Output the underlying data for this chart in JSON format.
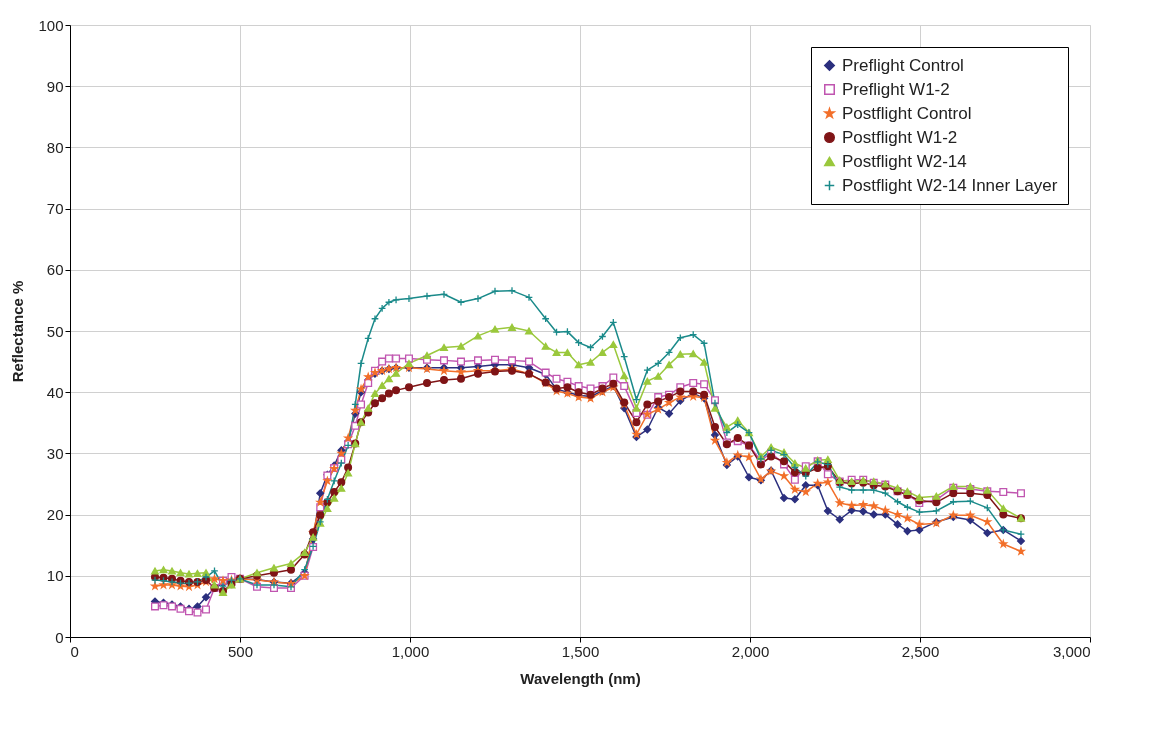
{
  "chart_data": {
    "type": "line",
    "xlabel": "Wavelength (nm)",
    "ylabel": "Reflectance %",
    "xlim": [
      0,
      3000
    ],
    "xticks": [
      0,
      {
        "value": 500,
        "label": "500"
      },
      {
        "value": 1000,
        "label": "1,000"
      },
      {
        "value": 1500,
        "label": "1,500"
      },
      {
        "value": 2000,
        "label": "2,000"
      },
      {
        "value": 2500,
        "label": "2,500"
      },
      {
        "value": 3000,
        "label": "3,000"
      }
    ],
    "ylim": [
      0,
      100
    ],
    "yticks": [
      0,
      10,
      20,
      30,
      40,
      50,
      60,
      70,
      80,
      90,
      100
    ],
    "grid": true,
    "legend": "top right",
    "line_style": "solid",
    "x": [
      250,
      275,
      300,
      325,
      350,
      375,
      400,
      425,
      450,
      475,
      500,
      550,
      600,
      650,
      690,
      715,
      736,
      757,
      777,
      798,
      818,
      839,
      856,
      877,
      897,
      918,
      938,
      959,
      997,
      1050,
      1100,
      1150,
      1200,
      1250,
      1300,
      1350,
      1399,
      1431,
      1463,
      1496,
      1531,
      1566,
      1598,
      1630,
      1666,
      1698,
      1730,
      1762,
      1795,
      1833,
      1865,
      1897,
      1932,
      1964,
      1997,
      2032,
      2062,
      2100,
      2132,
      2164,
      2199,
      2229,
      2264,
      2299,
      2333,
      2364,
      2398,
      2434,
      2463,
      2498,
      2548,
      2598,
      2648,
      2698,
      2745,
      2797
    ],
    "series": [
      {
        "name": "Preflight Control",
        "color": "#2b2f7e",
        "marker": "diamond",
        "values": [
          5.8,
          5.6,
          5.3,
          5,
          4.6,
          5,
          6.5,
          8,
          8.8,
          9.2,
          9.5,
          9.4,
          9,
          8.8,
          10.5,
          16,
          23.5,
          26.5,
          28,
          30.5,
          32,
          36.5,
          40,
          42,
          43,
          43.5,
          43.8,
          44,
          44,
          44,
          44,
          44,
          44.2,
          44.5,
          44.5,
          44,
          42.9,
          40.5,
          40,
          39.5,
          39.3,
          40.2,
          41,
          37.4,
          32.7,
          33.9,
          37.5,
          36.5,
          38.6,
          39.8,
          39,
          33,
          28.1,
          29.5,
          26.1,
          25.6,
          27.2,
          22.7,
          22.5,
          24.8,
          24.8,
          20.6,
          19.2,
          20.7,
          20.5,
          20,
          20,
          18.4,
          17.3,
          17.5,
          18.8,
          19.6,
          19.1,
          17,
          17.5,
          15.7
        ]
      },
      {
        "name": "Preflight W1-2",
        "color": "#c055b0",
        "marker": "square",
        "values": [
          5,
          5.2,
          5,
          4.6,
          4.2,
          4,
          4.5,
          8,
          9.2,
          9.8,
          9.5,
          8.2,
          8,
          8,
          10,
          14.7,
          21.2,
          26.4,
          27.6,
          29,
          31.5,
          34.5,
          38,
          41.5,
          43.5,
          45,
          45.5,
          45.5,
          45.5,
          45.3,
          45.2,
          45,
          45.2,
          45.3,
          45.2,
          45,
          43.2,
          42.2,
          41.7,
          41,
          40.6,
          41,
          42.4,
          41,
          36.6,
          36.3,
          39.2,
          39.6,
          40.8,
          41.5,
          41.3,
          38.7,
          31.8,
          32,
          31.3,
          28.8,
          30.1,
          28.2,
          25.7,
          27.9,
          28.7,
          26.6,
          25.4,
          25.7,
          25.7,
          25.2,
          24.9,
          23.8,
          23.3,
          21.9,
          22.4,
          24.4,
          24.2,
          23.8,
          23.7,
          23.5
        ]
      },
      {
        "name": "Postflight Control",
        "color": "#f26f2a",
        "marker": "star",
        "values": [
          8.3,
          8.5,
          8.5,
          8.3,
          8.2,
          8.5,
          9,
          9.5,
          9.2,
          9.3,
          9.5,
          9.3,
          9,
          8.7,
          10,
          17,
          22,
          25.5,
          27.5,
          30,
          32.5,
          37,
          40.5,
          42.5,
          43.2,
          43.5,
          43.8,
          44,
          44,
          43.8,
          43.5,
          43.3,
          43.5,
          43.5,
          43.8,
          43,
          41.5,
          40.2,
          39.8,
          39.2,
          39,
          40,
          40.8,
          38,
          33.1,
          36.4,
          37.2,
          38.3,
          39.2,
          39.3,
          39.1,
          32.1,
          28.5,
          29.7,
          29.4,
          25.8,
          27.1,
          26.3,
          24.1,
          23.7,
          25.1,
          25.3,
          21.9,
          21.5,
          21.6,
          21.4,
          20.7,
          20,
          19.4,
          18.4,
          18.6,
          19.9,
          19.9,
          18.8,
          15.2,
          14
        ]
      },
      {
        "name": "Postflight W1-2",
        "color": "#7f1416",
        "marker": "circle",
        "values": [
          9.8,
          9.7,
          9.5,
          9.2,
          9,
          9,
          9.3,
          8,
          7.5,
          8.6,
          9.5,
          10,
          10.5,
          11,
          13.5,
          17.1,
          19.9,
          22,
          23.7,
          25.3,
          27.7,
          31.6,
          35.1,
          36.7,
          38.2,
          39,
          39.8,
          40.3,
          40.8,
          41.5,
          42,
          42.2,
          43,
          43.4,
          43.5,
          43,
          41.6,
          40.6,
          40.8,
          40,
          39.6,
          40.6,
          41.4,
          38.3,
          35.1,
          38,
          38.5,
          39.2,
          40.1,
          40.1,
          39.6,
          34.3,
          31.5,
          32.5,
          31.3,
          28.2,
          29.5,
          28.7,
          26.9,
          26.8,
          27.6,
          27.9,
          25.3,
          25.1,
          25.2,
          24.8,
          24.6,
          23.8,
          23.2,
          22.3,
          22,
          23.5,
          23.5,
          23.2,
          20,
          19.4
        ]
      },
      {
        "name": "Postflight W2-14",
        "color": "#9ac83c",
        "marker": "triangle",
        "values": [
          10.8,
          11,
          10.8,
          10.5,
          10.3,
          10.4,
          10.5,
          8.5,
          7.3,
          8.5,
          9.5,
          10.5,
          11.3,
          12,
          13.8,
          16.3,
          18.6,
          21,
          22.7,
          24.3,
          26.8,
          31.6,
          35.1,
          37.4,
          39.8,
          41.1,
          42.2,
          43.1,
          44.7,
          46,
          47.3,
          47.5,
          49.2,
          50.3,
          50.6,
          50,
          47.5,
          46.5,
          46.5,
          44.5,
          44.9,
          46.5,
          47.8,
          42.7,
          37.4,
          41.8,
          42.6,
          44.5,
          46.2,
          46.3,
          44.9,
          37.4,
          34.3,
          35.4,
          33.4,
          29.5,
          31,
          30.2,
          28.4,
          27.6,
          28.9,
          29,
          25.6,
          25.4,
          25.6,
          25.4,
          25,
          24.3,
          23.8,
          22.8,
          23,
          24.6,
          24.6,
          24,
          21,
          19.4
        ]
      },
      {
        "name": "Postflight W2-14 Inner Layer",
        "color": "#1a8a8a",
        "marker": "cross",
        "values": [
          9.3,
          9.2,
          9,
          8.8,
          8.8,
          9,
          9.8,
          10.8,
          8.3,
          9.3,
          9.5,
          8.5,
          8.5,
          8.2,
          11,
          14.8,
          18.8,
          22.5,
          25.5,
          28.4,
          31.3,
          38,
          44.7,
          48.8,
          52,
          53.7,
          54.7,
          55.1,
          55.3,
          55.7,
          56,
          54.7,
          55.3,
          56.5,
          56.6,
          55.5,
          52,
          49.8,
          49.9,
          48.1,
          47.3,
          49.1,
          51.4,
          45.8,
          38.8,
          43.6,
          44.7,
          46.5,
          48.9,
          49.4,
          48,
          38.2,
          33.4,
          34.7,
          33.4,
          29.1,
          30.5,
          29.8,
          27.7,
          26.3,
          28.6,
          28.2,
          24.5,
          24,
          24,
          24,
          23.5,
          22.1,
          21.2,
          20.4,
          20.6,
          22.1,
          22.2,
          21.1,
          17.5,
          16.8
        ]
      }
    ]
  }
}
